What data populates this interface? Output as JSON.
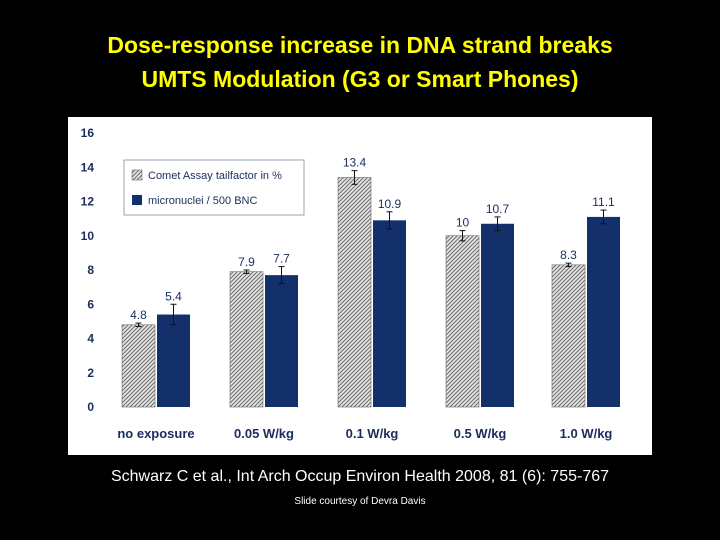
{
  "slide": {
    "title_line1": "Dose-response increase in DNA strand breaks",
    "title_line2": "UMTS Modulation (G3 or Smart Phones)",
    "citation": "Schwarz C et al., Int Arch Occup Environ Health 2008, 81 (6): 755-767",
    "courtesy": "Slide courtesy of Devra Davis"
  },
  "colors": {
    "background": "#000000",
    "title": "#ffff00",
    "text": "#ffffff",
    "series_comet": "#d4d4d4",
    "series_micronuclei": "#13306a",
    "axis_text": "#1b2d5e"
  },
  "chart_data": {
    "type": "bar",
    "categories": [
      "no exposure",
      "0.05 W/kg",
      "0.1 W/kg",
      "0.5 W/kg",
      "1.0 W/kg"
    ],
    "series": [
      {
        "name": "Comet Assay tailfactor in %",
        "values": [
          4.8,
          7.9,
          13.4,
          10,
          8.3
        ],
        "data_labels": [
          "4.8",
          "7.9",
          "13.4",
          "10",
          "8.3"
        ],
        "errors": [
          0.1,
          0.1,
          0.4,
          0.3,
          0.1
        ],
        "pattern": "hatched"
      },
      {
        "name": "micronuclei / 500 BNC",
        "values": [
          5.4,
          7.7,
          10.9,
          10.7,
          11.1
        ],
        "data_labels": [
          "5.4",
          "7.7",
          "10.9",
          "10.7",
          "11.1"
        ],
        "errors": [
          0.6,
          0.5,
          0.5,
          0.4,
          0.4
        ],
        "pattern": "solid"
      }
    ],
    "yticks": [
      "0",
      "2",
      "4",
      "6",
      "8",
      "10",
      "12",
      "14",
      "16"
    ],
    "ylim": [
      0,
      16
    ],
    "xlabel": "",
    "ylabel": "",
    "grid": false,
    "legend_position": "top-left"
  }
}
